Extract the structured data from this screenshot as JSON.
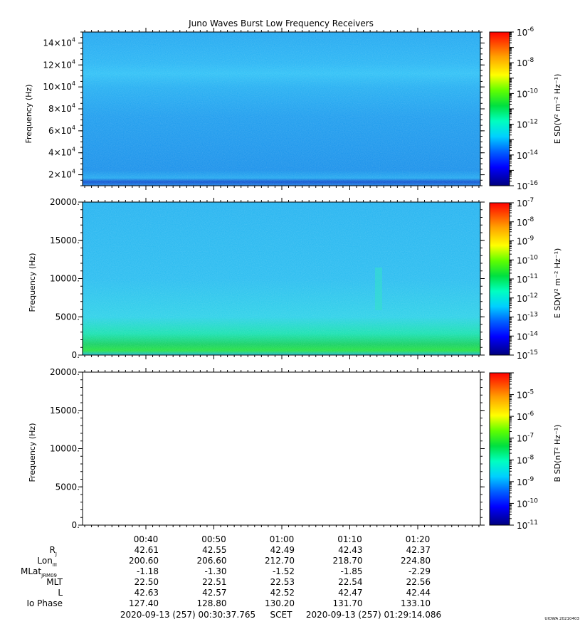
{
  "chart_data": [
    {
      "type": "heatmap",
      "title": "Juno Waves Burst Low Frequency Receivers",
      "ylabel": "Frequency (Hz)",
      "ylim": [
        10000,
        150000
      ],
      "y_ticks": [
        {
          "base": "2",
          "exp": "4"
        },
        {
          "base": "4",
          "exp": "4"
        },
        {
          "base": "6",
          "exp": "4"
        },
        {
          "base": "8",
          "exp": "4"
        },
        {
          "base": "10",
          "exp": "4"
        },
        {
          "base": "12",
          "exp": "4"
        },
        {
          "base": "14",
          "exp": "4"
        }
      ],
      "y_tick_values": [
        20000,
        40000,
        60000,
        80000,
        100000,
        120000,
        140000
      ],
      "colorbar": {
        "label": "E SD(V² m⁻² Hz⁻¹)",
        "scale": "log",
        "range": [
          1e-16,
          1e-06
        ],
        "tick_exponents": [
          "-6",
          "-8",
          "-10",
          "-12",
          "-14",
          "-16"
        ]
      }
    },
    {
      "type": "heatmap",
      "ylabel": "Frequency (Hz)",
      "ylim": [
        0,
        20000
      ],
      "y_ticks": [
        "0.",
        "5000.",
        "10000.",
        "15000.",
        "20000."
      ],
      "y_tick_values": [
        0,
        5000,
        10000,
        15000,
        20000
      ],
      "colorbar": {
        "label": "E SD(V² m⁻² Hz⁻¹)",
        "scale": "log",
        "range": [
          1e-15,
          1e-07
        ],
        "tick_exponents": [
          "-7",
          "-8",
          "-9",
          "-10",
          "-11",
          "-12",
          "-13",
          "-14",
          "-15"
        ]
      }
    },
    {
      "type": "heatmap",
      "ylabel": "Frequency (Hz)",
      "ylim": [
        0,
        20000
      ],
      "y_ticks": [
        "0.",
        "5000.",
        "10000.",
        "15000.",
        "20000."
      ],
      "y_tick_values": [
        0,
        5000,
        10000,
        15000,
        20000
      ],
      "colorbar": {
        "label": "B SD(nT² Hz⁻¹)",
        "scale": "log",
        "range": [
          1e-11,
          0.0001
        ],
        "tick_exponents": [
          "-5",
          "-6",
          "-7",
          "-8",
          "-9",
          "-10",
          "-11"
        ]
      }
    }
  ],
  "time_axis": {
    "x_ticks": [
      "00:40",
      "00:50",
      "01:00",
      "01:10",
      "01:20"
    ],
    "ephemeris": [
      {
        "label": "R",
        "sub": "J",
        "values": [
          "42.61",
          "42.55",
          "42.49",
          "42.43",
          "42.37"
        ]
      },
      {
        "label": "Lon",
        "sub": "III",
        "values": [
          "200.60",
          "206.60",
          "212.70",
          "218.70",
          "224.80"
        ]
      },
      {
        "label": "MLat",
        "sub": "JRM09",
        "values": [
          "-1.18",
          "-1.30",
          "-1.52",
          "-1.85",
          "-2.29"
        ]
      },
      {
        "label": "MLT",
        "sub": "",
        "values": [
          "22.50",
          "22.51",
          "22.53",
          "22.54",
          "22.56"
        ]
      },
      {
        "label": "L",
        "sub": "",
        "values": [
          "42.63",
          "42.57",
          "42.52",
          "42.47",
          "42.44"
        ]
      },
      {
        "label": "Io Phase",
        "sub": "",
        "values": [
          "127.40",
          "128.80",
          "130.20",
          "131.70",
          "133.10"
        ]
      }
    ],
    "start": "2020-09-13 (257) 00:30:37.765",
    "scet_label": "SCET",
    "end": "2020-09-13 (257) 01:29:14.086"
  },
  "footer_tag": "UIOWA 20210403"
}
